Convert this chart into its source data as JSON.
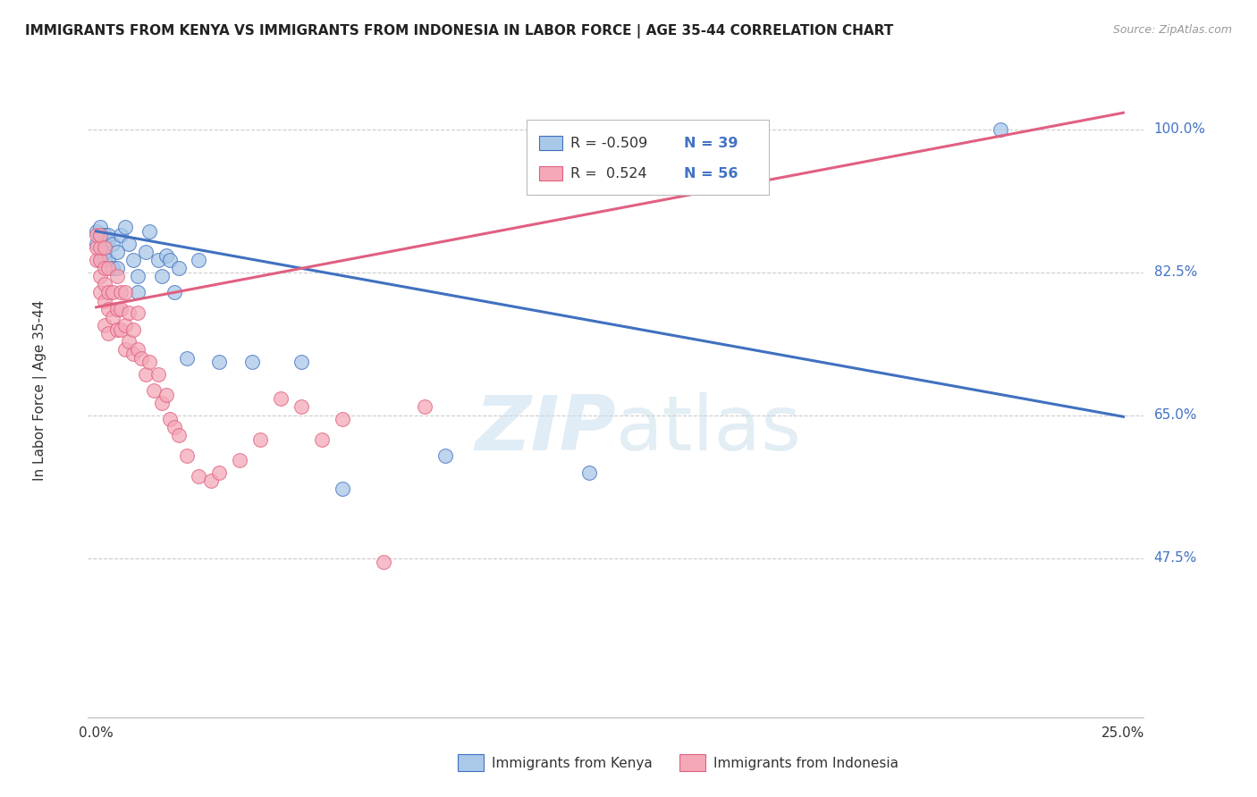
{
  "title": "IMMIGRANTS FROM KENYA VS IMMIGRANTS FROM INDONESIA IN LABOR FORCE | AGE 35-44 CORRELATION CHART",
  "source": "Source: ZipAtlas.com",
  "ylabel": "In Labor Force | Age 35-44",
  "watermark_zip": "ZIP",
  "watermark_atlas": "atlas",
  "legend_kenya": "Immigrants from Kenya",
  "legend_indonesia": "Immigrants from Indonesia",
  "R_kenya": -0.509,
  "N_kenya": 39,
  "R_indonesia": 0.524,
  "N_indonesia": 56,
  "xlim": [
    -0.002,
    0.255
  ],
  "ylim": [
    0.28,
    1.08
  ],
  "ytick_vals": [
    1.0,
    0.825,
    0.65,
    0.475
  ],
  "ytick_labels": [
    "100.0%",
    "82.5%",
    "65.0%",
    "47.5%"
  ],
  "color_kenya": "#aac8e8",
  "color_indonesia": "#f4a8b8",
  "line_color_kenya": "#4070c0",
  "line_color_indonesia": "#e06080",
  "kenya_x": [
    0.0,
    0.0,
    0.001,
    0.001,
    0.001,
    0.002,
    0.002,
    0.002,
    0.002,
    0.003,
    0.003,
    0.003,
    0.004,
    0.004,
    0.005,
    0.005,
    0.006,
    0.007,
    0.008,
    0.009,
    0.01,
    0.01,
    0.012,
    0.013,
    0.015,
    0.016,
    0.017,
    0.018,
    0.019,
    0.02,
    0.022,
    0.025,
    0.03,
    0.038,
    0.05,
    0.06,
    0.085,
    0.12,
    0.22
  ],
  "kenya_y": [
    0.875,
    0.86,
    0.87,
    0.84,
    0.88,
    0.86,
    0.84,
    0.87,
    0.85,
    0.84,
    0.865,
    0.87,
    0.86,
    0.83,
    0.85,
    0.83,
    0.87,
    0.88,
    0.86,
    0.84,
    0.82,
    0.8,
    0.85,
    0.875,
    0.84,
    0.82,
    0.845,
    0.84,
    0.8,
    0.83,
    0.72,
    0.84,
    0.715,
    0.715,
    0.715,
    0.56,
    0.6,
    0.58,
    1.0
  ],
  "indonesia_x": [
    0.0,
    0.0,
    0.0,
    0.001,
    0.001,
    0.001,
    0.001,
    0.001,
    0.002,
    0.002,
    0.002,
    0.002,
    0.002,
    0.003,
    0.003,
    0.003,
    0.003,
    0.004,
    0.004,
    0.005,
    0.005,
    0.005,
    0.006,
    0.006,
    0.006,
    0.007,
    0.007,
    0.007,
    0.008,
    0.008,
    0.009,
    0.009,
    0.01,
    0.01,
    0.011,
    0.012,
    0.013,
    0.014,
    0.015,
    0.016,
    0.017,
    0.018,
    0.019,
    0.02,
    0.022,
    0.025,
    0.028,
    0.03,
    0.035,
    0.04,
    0.045,
    0.05,
    0.055,
    0.06,
    0.07,
    0.08
  ],
  "indonesia_y": [
    0.84,
    0.855,
    0.87,
    0.8,
    0.82,
    0.84,
    0.855,
    0.87,
    0.76,
    0.79,
    0.81,
    0.83,
    0.855,
    0.75,
    0.78,
    0.8,
    0.83,
    0.77,
    0.8,
    0.755,
    0.78,
    0.82,
    0.755,
    0.78,
    0.8,
    0.73,
    0.76,
    0.8,
    0.74,
    0.775,
    0.725,
    0.755,
    0.73,
    0.775,
    0.72,
    0.7,
    0.715,
    0.68,
    0.7,
    0.665,
    0.675,
    0.645,
    0.635,
    0.625,
    0.6,
    0.575,
    0.57,
    0.58,
    0.595,
    0.62,
    0.67,
    0.66,
    0.62,
    0.645,
    0.47,
    0.66
  ],
  "line_kenya_x0": 0.0,
  "line_kenya_y0": 0.875,
  "line_kenya_x1": 0.25,
  "line_kenya_y1": 0.648,
  "line_indonesia_x0": 0.0,
  "line_indonesia_y0": 0.782,
  "line_indonesia_x1": 0.25,
  "line_indonesia_y1": 1.02
}
